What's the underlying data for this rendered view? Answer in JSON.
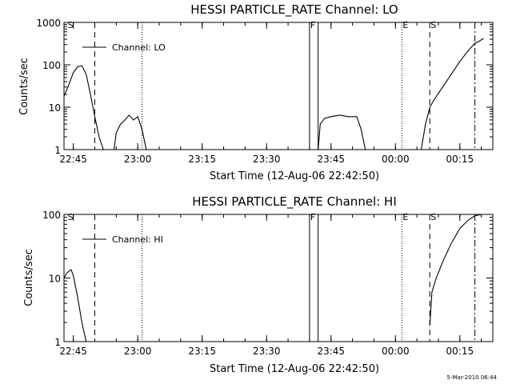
{
  "chart_data": [
    {
      "type": "line",
      "title": "HESSI PARTICLE_RATE Channel: LO",
      "xlabel": "Start Time (12-Aug-06 22:42:50)",
      "ylabel": "Counts/sec",
      "yscale": "log",
      "ylim": [
        1,
        1000
      ],
      "xlim": [
        "22:42:50",
        "00:22:40"
      ],
      "x_ticks": [
        "22:45",
        "23:00",
        "23:15",
        "23:30",
        "23:45",
        "00:00",
        "00:15"
      ],
      "y_ticks": [
        "1",
        "10",
        "100",
        "1000"
      ],
      "legend": {
        "label": "Channel: LO",
        "placement": "top-left"
      },
      "markers": [
        {
          "label": "S",
          "time": "22:43:30",
          "style": "none"
        },
        {
          "label": "",
          "time": "22:50:00",
          "style": "dashed"
        },
        {
          "label": "",
          "time": "23:01:00",
          "style": "dotted"
        },
        {
          "label": "F",
          "time": "23:40:00",
          "style": "solid"
        },
        {
          "label": "",
          "time": "23:42:00",
          "style": "solid"
        },
        {
          "label": "E",
          "time": "00:01:30",
          "style": "dotted"
        },
        {
          "label": "S",
          "time": "00:08:00",
          "style": "dashed"
        },
        {
          "label": "",
          "time": "00:18:30",
          "style": "dashdot"
        }
      ],
      "series": [
        {
          "segments": [
            [
              [
                "22:42:50",
                18
              ],
              [
                "22:44:00",
                35
              ],
              [
                "22:45:00",
                65
              ],
              [
                "22:46:00",
                90
              ],
              [
                "22:47:00",
                95
              ],
              [
                "22:48:00",
                60
              ],
              [
                "22:49:00",
                20
              ],
              [
                "22:50:00",
                6
              ],
              [
                "22:51:00",
                2
              ],
              [
                "22:52:00",
                1
              ]
            ],
            [
              [
                "22:54:30",
                1
              ],
              [
                "22:55:00",
                2.5
              ],
              [
                "22:56:00",
                4
              ],
              [
                "22:57:00",
                5
              ],
              [
                "22:58:00",
                6.5
              ],
              [
                "22:59:00",
                5
              ],
              [
                "23:00:00",
                6
              ],
              [
                "23:01:00",
                3
              ],
              [
                "23:02:00",
                1
              ]
            ],
            [
              [
                "23:42:00",
                1
              ],
              [
                "23:42:30",
                4
              ],
              [
                "23:43:30",
                5.5
              ],
              [
                "23:45:00",
                6
              ],
              [
                "23:47:00",
                6.5
              ],
              [
                "23:49:00",
                6
              ],
              [
                "23:51:00",
                6
              ],
              [
                "23:52:00",
                3
              ],
              [
                "23:53:00",
                1
              ]
            ],
            [
              [
                "00:06:00",
                1
              ],
              [
                "00:07:00",
                4
              ],
              [
                "00:08:00",
                10
              ],
              [
                "00:09:00",
                15
              ],
              [
                "00:11:00",
                30
              ],
              [
                "00:13:00",
                60
              ],
              [
                "00:15:00",
                120
              ],
              [
                "00:17:00",
                220
              ],
              [
                "00:18:30",
                320
              ],
              [
                "00:19:30",
                360
              ],
              [
                "00:20:30",
                420
              ]
            ]
          ]
        }
      ]
    },
    {
      "type": "line",
      "title": "HESSI PARTICLE_RATE Channel: HI",
      "xlabel": "Start Time (12-Aug-06 22:42:50)",
      "ylabel": "Counts/sec",
      "yscale": "log",
      "ylim": [
        1,
        100
      ],
      "xlim": [
        "22:42:50",
        "00:22:40"
      ],
      "x_ticks": [
        "22:45",
        "23:00",
        "23:15",
        "23:30",
        "23:45",
        "00:00",
        "00:15"
      ],
      "y_ticks": [
        "1",
        "10",
        "100"
      ],
      "legend": {
        "label": "Channel: HI",
        "placement": "top-left"
      },
      "markers": [
        {
          "label": "S",
          "time": "22:43:30",
          "style": "none"
        },
        {
          "label": "",
          "time": "22:50:00",
          "style": "dashed"
        },
        {
          "label": "",
          "time": "23:01:00",
          "style": "dotted"
        },
        {
          "label": "F",
          "time": "23:40:00",
          "style": "solid"
        },
        {
          "label": "",
          "time": "23:42:00",
          "style": "solid"
        },
        {
          "label": "E",
          "time": "00:01:30",
          "style": "dotted"
        },
        {
          "label": "S",
          "time": "00:08:00",
          "style": "dashed"
        },
        {
          "label": "",
          "time": "00:18:30",
          "style": "dashdot"
        }
      ],
      "series": [
        {
          "segments": [
            [
              [
                "22:42:50",
                10
              ],
              [
                "22:43:30",
                12
              ],
              [
                "22:44:30",
                13.5
              ],
              [
                "22:45:00",
                11
              ],
              [
                "22:46:00",
                5
              ],
              [
                "22:47:00",
                2
              ],
              [
                "22:48:00",
                1
              ]
            ],
            [
              [
                "00:08:00",
                1.8
              ],
              [
                "00:08:30",
                6
              ],
              [
                "00:09:30",
                10
              ],
              [
                "00:11:00",
                18
              ],
              [
                "00:13:00",
                35
              ],
              [
                "00:15:00",
                60
              ],
              [
                "00:17:00",
                82
              ],
              [
                "00:18:30",
                95
              ],
              [
                "00:20:00",
                100
              ]
            ]
          ]
        }
      ]
    }
  ],
  "timestamp": "5-Mar-2010 06:44"
}
